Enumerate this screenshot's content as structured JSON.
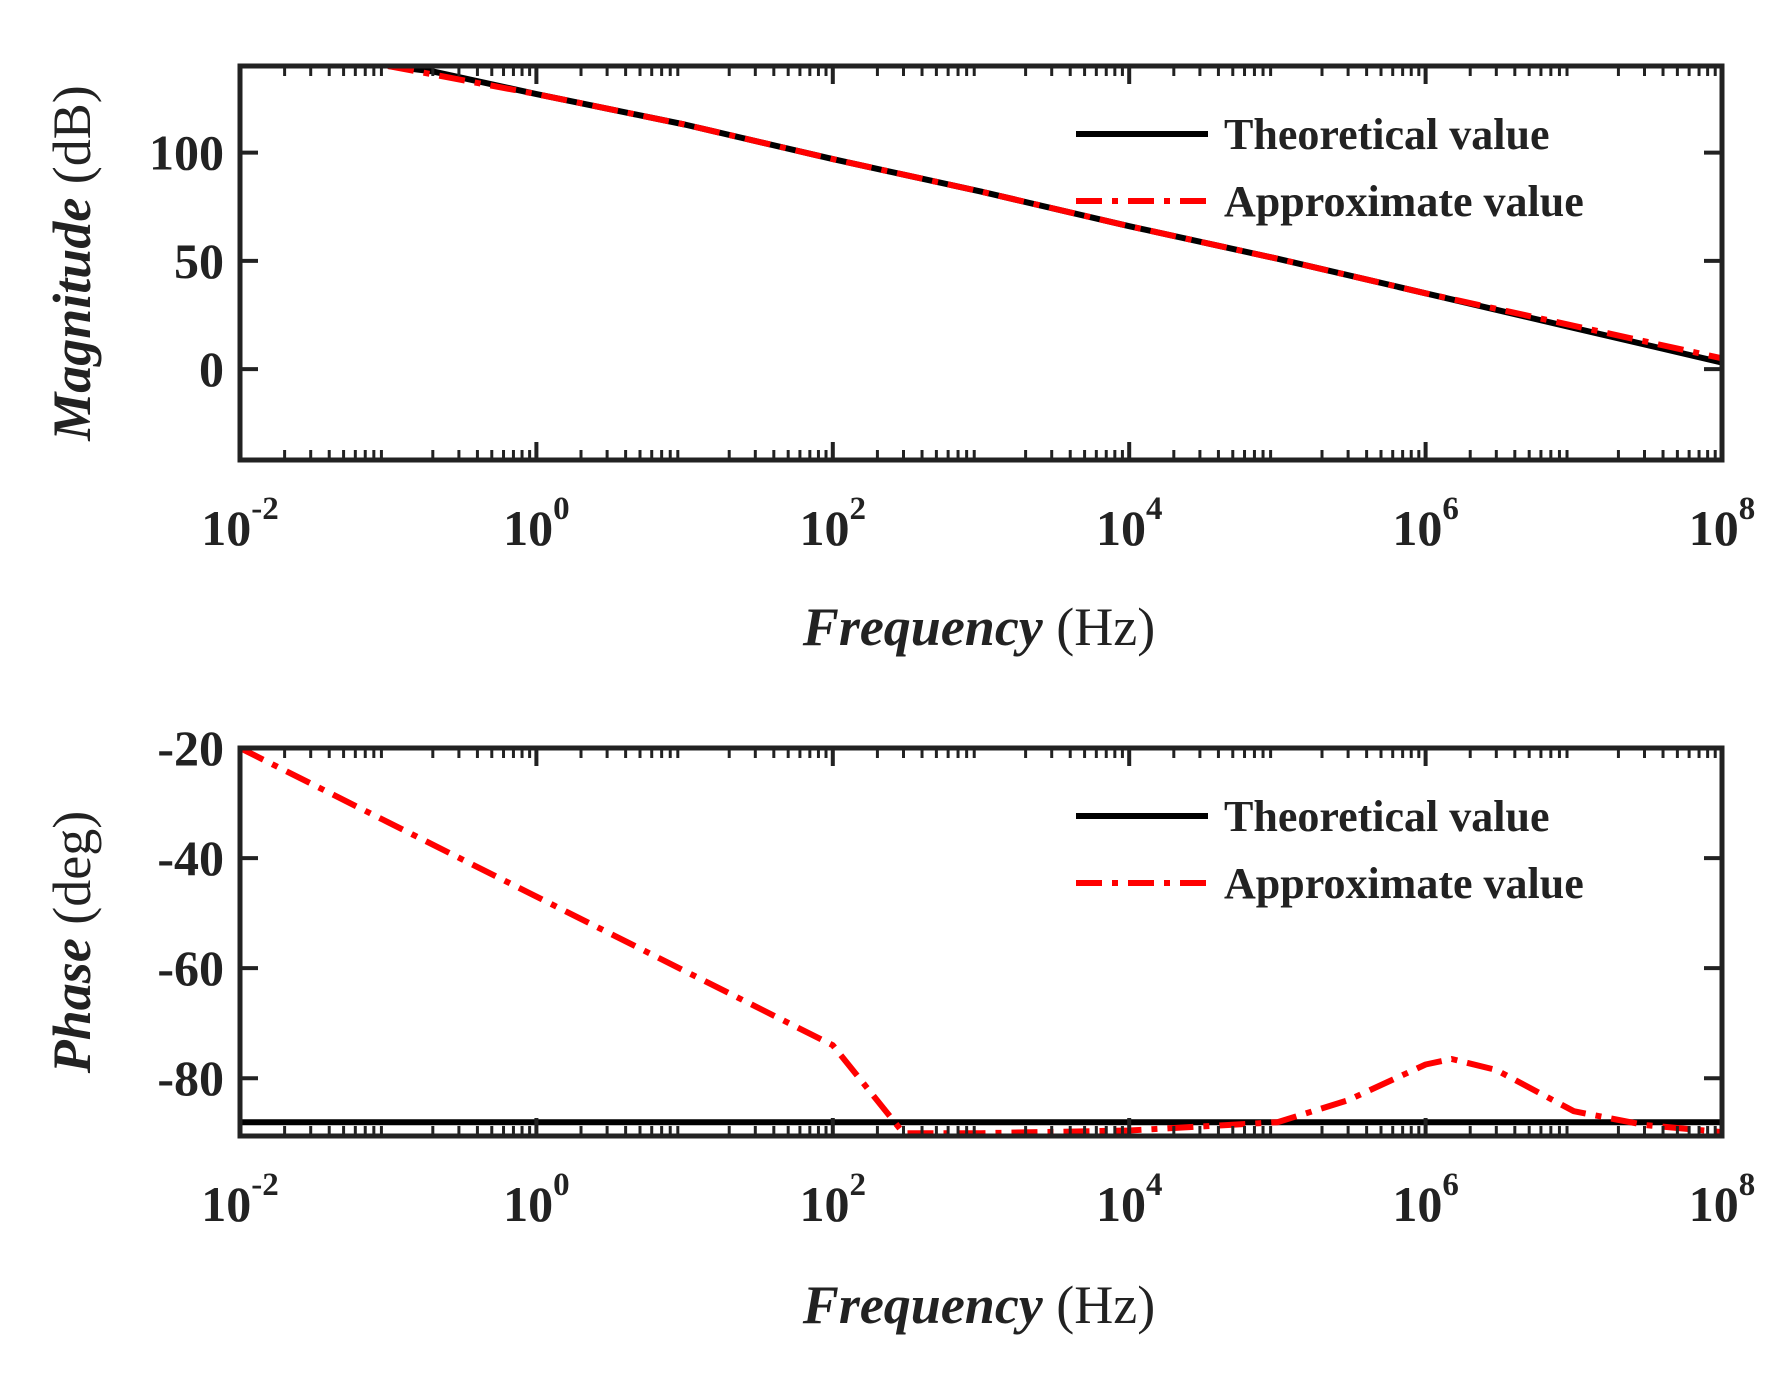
{
  "chart_data": [
    {
      "type": "line",
      "id": "magnitude",
      "title": "",
      "xlabel": "Frequency",
      "xlabel_unit": "(Hz)",
      "ylabel": "Magnitude",
      "ylabel_unit": "(dB)",
      "xscale": "log",
      "xlim": [
        0.01,
        100000000
      ],
      "ylim": [
        -42,
        140
      ],
      "xticks": [
        {
          "base": "10",
          "exp": "-2",
          "value": 0.01
        },
        {
          "base": "10",
          "exp": "0",
          "value": 1
        },
        {
          "base": "10",
          "exp": "2",
          "value": 100
        },
        {
          "base": "10",
          "exp": "4",
          "value": 10000
        },
        {
          "base": "10",
          "exp": "6",
          "value": 1000000
        },
        {
          "base": "10",
          "exp": "8",
          "value": 100000000
        }
      ],
      "yticks": [
        {
          "label": "100",
          "value": 100
        },
        {
          "label": "50",
          "value": 50
        },
        {
          "label": "0",
          "value": 0
        }
      ],
      "grid": false,
      "legend_position": "top-right",
      "series": [
        {
          "name": "Theoretical value",
          "color": "#000000",
          "style": "solid",
          "x": [
            0.1,
            0.2,
            1,
            10,
            100,
            1000,
            10000,
            100000,
            1000000,
            10000000,
            100000000
          ],
          "y": [
            140,
            137.5,
            127,
            113,
            97,
            82,
            66,
            51,
            35,
            19,
            3
          ]
        },
        {
          "name": "Approximate value",
          "color": "#ff0000",
          "style": "dashdot",
          "x": [
            0.1,
            1,
            10,
            100,
            1000,
            10000,
            100000,
            1000000,
            10000000,
            100000000
          ],
          "y": [
            140,
            127,
            113,
            97,
            82,
            66,
            51,
            35,
            20,
            5
          ]
        }
      ]
    },
    {
      "type": "line",
      "id": "phase",
      "title": "",
      "xlabel": "Frequency",
      "xlabel_unit": "(Hz)",
      "ylabel": "Phase",
      "ylabel_unit": "(deg)",
      "xscale": "log",
      "xlim": [
        0.01,
        100000000
      ],
      "ylim": [
        -90.5,
        -20
      ],
      "xticks": [
        {
          "base": "10",
          "exp": "-2",
          "value": 0.01
        },
        {
          "base": "10",
          "exp": "0",
          "value": 1
        },
        {
          "base": "10",
          "exp": "2",
          "value": 100
        },
        {
          "base": "10",
          "exp": "4",
          "value": 10000
        },
        {
          "base": "10",
          "exp": "6",
          "value": 1000000
        },
        {
          "base": "10",
          "exp": "8",
          "value": 100000000
        }
      ],
      "yticks": [
        {
          "label": "-20",
          "value": -20
        },
        {
          "label": "-40",
          "value": -40
        },
        {
          "label": "-60",
          "value": -60
        },
        {
          "label": "-80",
          "value": -80
        }
      ],
      "grid": false,
      "legend_position": "top-right",
      "series": [
        {
          "name": "Theoretical value",
          "color": "#000000",
          "style": "solid",
          "x": [
            0.01,
            100000000
          ],
          "y": [
            -88,
            -88
          ]
        },
        {
          "name": "Approximate value",
          "color": "#ff0000",
          "style": "dashdot",
          "x": [
            0.01,
            0.1,
            1,
            10,
            100,
            300,
            1000,
            10000,
            100000,
            300000,
            1000000,
            1500000,
            3000000,
            10000000,
            30000000,
            100000000
          ],
          "y": [
            -20,
            -33.5,
            -47,
            -60.5,
            -74,
            -90,
            -90,
            -89.5,
            -88,
            -84,
            -77.5,
            -76.5,
            -78.5,
            -86,
            -88.5,
            -89.8
          ]
        }
      ]
    }
  ]
}
